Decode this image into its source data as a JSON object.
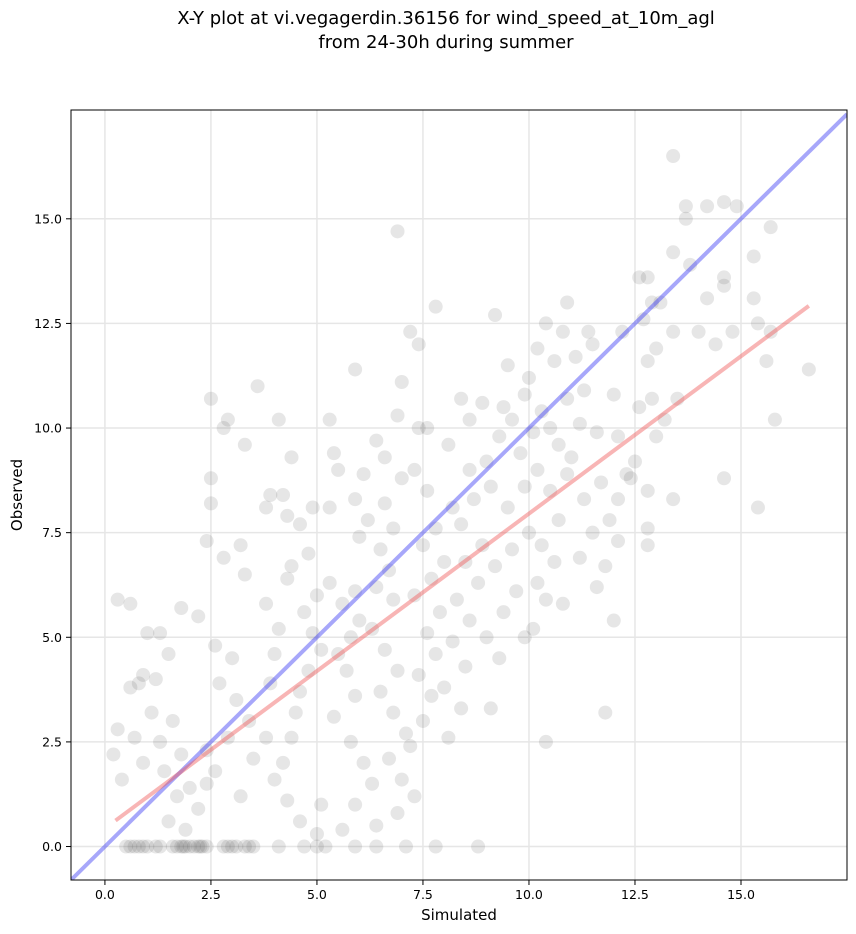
{
  "chart_data": {
    "type": "scatter",
    "title": [
      "X-Y plot at vi.vegagerdin.36156 for wind_speed_at_10m_agl",
      "from 24-30h during summer"
    ],
    "xlabel": "Simulated",
    "ylabel": "Observed",
    "xlim": [
      -0.8,
      17.5
    ],
    "ylim": [
      -0.8,
      17.6
    ],
    "xticks": [
      0.0,
      2.5,
      5.0,
      7.5,
      10.0,
      12.5,
      15.0
    ],
    "xtick_labels": [
      "0.0",
      "2.5",
      "5.0",
      "7.5",
      "10.0",
      "12.5",
      "15.0"
    ],
    "yticks": [
      0.0,
      2.5,
      5.0,
      7.5,
      10.0,
      12.5,
      15.0
    ],
    "ytick_labels": [
      "0.0",
      "2.5",
      "5.0",
      "7.5",
      "10.0",
      "12.5",
      "15.0"
    ],
    "grid": true,
    "point_color": "#555555",
    "point_alpha": 0.15,
    "lines": [
      {
        "role": "identity",
        "color": "#3b3bf5",
        "x": [
          -0.8,
          17.5
        ],
        "y": [
          -0.8,
          17.5
        ]
      },
      {
        "role": "fit",
        "color": "#f05a5a",
        "x": [
          0.25,
          16.6
        ],
        "y": [
          0.62,
          12.92
        ]
      }
    ],
    "points": [
      [
        0.5,
        0
      ],
      [
        0.6,
        0
      ],
      [
        0.7,
        0
      ],
      [
        0.8,
        0
      ],
      [
        0.9,
        0
      ],
      [
        1.0,
        0
      ],
      [
        1.2,
        0
      ],
      [
        1.3,
        0
      ],
      [
        1.6,
        0
      ],
      [
        1.7,
        0
      ],
      [
        1.8,
        0
      ],
      [
        1.85,
        0
      ],
      [
        1.9,
        0
      ],
      [
        2.0,
        0
      ],
      [
        2.1,
        0
      ],
      [
        2.2,
        0
      ],
      [
        2.25,
        0
      ],
      [
        2.3,
        0
      ],
      [
        2.4,
        0
      ],
      [
        2.8,
        0
      ],
      [
        2.9,
        0
      ],
      [
        3.0,
        0
      ],
      [
        3.1,
        0
      ],
      [
        3.3,
        0
      ],
      [
        3.4,
        0
      ],
      [
        3.5,
        0
      ],
      [
        4.1,
        0
      ],
      [
        4.7,
        0
      ],
      [
        5.0,
        0
      ],
      [
        5.2,
        0
      ],
      [
        5.9,
        0
      ],
      [
        6.4,
        0
      ],
      [
        7.1,
        0
      ],
      [
        7.8,
        0
      ],
      [
        8.8,
        0
      ],
      [
        0.3,
        5.9
      ],
      [
        0.6,
        5.8
      ],
      [
        0.2,
        2.2
      ],
      [
        0.3,
        2.8
      ],
      [
        0.4,
        1.6
      ],
      [
        0.6,
        3.8
      ],
      [
        0.8,
        3.9
      ],
      [
        1.0,
        5.1
      ],
      [
        1.3,
        5.1
      ],
      [
        1.5,
        4.6
      ],
      [
        0.9,
        4.1
      ],
      [
        1.2,
        4.0
      ],
      [
        1.1,
        3.2
      ],
      [
        0.7,
        2.6
      ],
      [
        0.9,
        2.0
      ],
      [
        1.3,
        2.5
      ],
      [
        1.6,
        3.0
      ],
      [
        1.8,
        2.2
      ],
      [
        2.0,
        1.4
      ],
      [
        1.4,
        1.8
      ],
      [
        1.7,
        1.2
      ],
      [
        1.5,
        0.6
      ],
      [
        1.9,
        0.4
      ],
      [
        2.2,
        0.9
      ],
      [
        2.4,
        1.5
      ],
      [
        1.8,
        5.7
      ],
      [
        2.2,
        5.5
      ],
      [
        2.4,
        7.3
      ],
      [
        2.5,
        8.2
      ],
      [
        2.5,
        8.8
      ],
      [
        2.5,
        10.7
      ],
      [
        2.8,
        10.0
      ],
      [
        2.9,
        10.2
      ],
      [
        2.8,
        6.9
      ],
      [
        3.2,
        7.2
      ],
      [
        3.3,
        9.6
      ],
      [
        3.6,
        11.0
      ],
      [
        3.3,
        6.5
      ],
      [
        3.8,
        5.8
      ],
      [
        2.6,
        4.8
      ],
      [
        3.0,
        4.5
      ],
      [
        2.7,
        3.9
      ],
      [
        3.1,
        3.5
      ],
      [
        3.4,
        3.0
      ],
      [
        2.9,
        2.6
      ],
      [
        2.4,
        2.3
      ],
      [
        2.6,
        1.8
      ],
      [
        3.2,
        1.2
      ],
      [
        3.5,
        2.1
      ],
      [
        3.8,
        2.6
      ],
      [
        3.9,
        3.9
      ],
      [
        4.0,
        4.6
      ],
      [
        4.1,
        5.2
      ],
      [
        4.3,
        6.4
      ],
      [
        4.4,
        6.7
      ],
      [
        3.8,
        8.1
      ],
      [
        3.9,
        8.4
      ],
      [
        4.2,
        8.4
      ],
      [
        4.1,
        10.2
      ],
      [
        4.4,
        9.3
      ],
      [
        4.3,
        7.9
      ],
      [
        4.6,
        7.7
      ],
      [
        4.8,
        7.0
      ],
      [
        4.9,
        8.1
      ],
      [
        5.3,
        8.1
      ],
      [
        5.3,
        10.2
      ],
      [
        5.4,
        9.4
      ],
      [
        5.5,
        9.0
      ],
      [
        5.3,
        6.3
      ],
      [
        5.0,
        6.0
      ],
      [
        4.7,
        5.6
      ],
      [
        4.9,
        5.1
      ],
      [
        5.1,
        4.7
      ],
      [
        4.8,
        4.2
      ],
      [
        4.6,
        3.7
      ],
      [
        4.5,
        3.2
      ],
      [
        4.4,
        2.6
      ],
      [
        4.2,
        2.0
      ],
      [
        4.0,
        1.6
      ],
      [
        4.3,
        1.1
      ],
      [
        4.6,
        0.6
      ],
      [
        5.0,
        0.3
      ],
      [
        5.6,
        0.4
      ],
      [
        5.1,
        1.0
      ],
      [
        5.6,
        5.8
      ],
      [
        5.9,
        6.1
      ],
      [
        6.0,
        5.4
      ],
      [
        5.8,
        5.0
      ],
      [
        5.5,
        4.6
      ],
      [
        5.7,
        4.2
      ],
      [
        5.9,
        3.6
      ],
      [
        5.4,
        3.1
      ],
      [
        5.8,
        2.5
      ],
      [
        6.1,
        2.0
      ],
      [
        6.3,
        1.5
      ],
      [
        5.9,
        1.0
      ],
      [
        6.4,
        0.5
      ],
      [
        6.0,
        7.4
      ],
      [
        6.2,
        7.8
      ],
      [
        5.9,
        8.3
      ],
      [
        6.1,
        8.9
      ],
      [
        6.4,
        9.7
      ],
      [
        5.9,
        11.4
      ],
      [
        6.6,
        9.3
      ],
      [
        6.6,
        8.2
      ],
      [
        6.8,
        7.6
      ],
      [
        6.5,
        7.1
      ],
      [
        6.7,
        6.6
      ],
      [
        6.4,
        6.2
      ],
      [
        6.8,
        5.9
      ],
      [
        6.3,
        5.2
      ],
      [
        6.6,
        4.7
      ],
      [
        6.9,
        4.2
      ],
      [
        6.5,
        3.7
      ],
      [
        6.8,
        3.2
      ],
      [
        7.1,
        2.7
      ],
      [
        6.7,
        2.1
      ],
      [
        7.0,
        1.6
      ],
      [
        7.3,
        1.2
      ],
      [
        6.9,
        0.8
      ],
      [
        7.2,
        2.4
      ],
      [
        7.5,
        3.0
      ],
      [
        7.7,
        3.6
      ],
      [
        7.4,
        4.1
      ],
      [
        7.8,
        4.6
      ],
      [
        7.6,
        5.1
      ],
      [
        7.9,
        5.6
      ],
      [
        7.3,
        6.0
      ],
      [
        7.7,
        6.4
      ],
      [
        8.0,
        6.8
      ],
      [
        7.5,
        7.2
      ],
      [
        7.8,
        7.6
      ],
      [
        8.2,
        8.1
      ],
      [
        7.6,
        8.5
      ],
      [
        7.0,
        8.8
      ],
      [
        7.3,
        9.0
      ],
      [
        7.4,
        10.0
      ],
      [
        7.6,
        10.0
      ],
      [
        6.9,
        10.3
      ],
      [
        7.0,
        11.1
      ],
      [
        7.2,
        12.3
      ],
      [
        7.4,
        12.0
      ],
      [
        7.8,
        12.9
      ],
      [
        6.9,
        14.7
      ],
      [
        8.1,
        2.6
      ],
      [
        8.4,
        3.3
      ],
      [
        8.0,
        3.8
      ],
      [
        8.5,
        4.3
      ],
      [
        8.2,
        4.9
      ],
      [
        8.6,
        5.4
      ],
      [
        8.3,
        5.9
      ],
      [
        8.8,
        6.3
      ],
      [
        8.5,
        6.8
      ],
      [
        8.9,
        7.2
      ],
      [
        8.4,
        7.7
      ],
      [
        8.7,
        8.3
      ],
      [
        9.1,
        8.6
      ],
      [
        8.6,
        9.0
      ],
      [
        9.0,
        9.2
      ],
      [
        8.9,
        10.6
      ],
      [
        8.4,
        10.7
      ],
      [
        8.1,
        9.6
      ],
      [
        8.6,
        10.2
      ],
      [
        9.3,
        9.8
      ],
      [
        9.4,
        10.5
      ],
      [
        9.5,
        11.5
      ],
      [
        9.2,
        12.7
      ],
      [
        9.6,
        10.2
      ],
      [
        9.9,
        10.8
      ],
      [
        9.1,
        3.3
      ],
      [
        9.3,
        4.5
      ],
      [
        9.0,
        5.0
      ],
      [
        9.4,
        5.6
      ],
      [
        9.7,
        6.1
      ],
      [
        9.2,
        6.7
      ],
      [
        9.6,
        7.1
      ],
      [
        10.0,
        7.5
      ],
      [
        9.5,
        8.1
      ],
      [
        9.9,
        8.6
      ],
      [
        10.2,
        9.0
      ],
      [
        9.8,
        9.4
      ],
      [
        10.1,
        9.9
      ],
      [
        10.3,
        10.4
      ],
      [
        10.0,
        11.2
      ],
      [
        10.2,
        11.9
      ],
      [
        10.4,
        12.5
      ],
      [
        10.6,
        11.6
      ],
      [
        10.8,
        12.3
      ],
      [
        10.5,
        10.0
      ],
      [
        10.9,
        10.7
      ],
      [
        9.9,
        5.0
      ],
      [
        10.1,
        5.2
      ],
      [
        10.4,
        5.9
      ],
      [
        10.2,
        6.3
      ],
      [
        10.6,
        6.8
      ],
      [
        10.3,
        7.2
      ],
      [
        10.7,
        7.8
      ],
      [
        10.5,
        8.5
      ],
      [
        10.9,
        8.9
      ],
      [
        11.0,
        9.3
      ],
      [
        10.7,
        9.6
      ],
      [
        11.2,
        10.1
      ],
      [
        11.3,
        10.9
      ],
      [
        11.1,
        11.7
      ],
      [
        11.4,
        12.3
      ],
      [
        11.5,
        12.0
      ],
      [
        10.9,
        13.0
      ],
      [
        10.8,
        5.8
      ],
      [
        11.2,
        6.9
      ],
      [
        11.5,
        7.5
      ],
      [
        11.3,
        8.3
      ],
      [
        11.7,
        8.7
      ],
      [
        11.6,
        9.9
      ],
      [
        12.0,
        10.8
      ],
      [
        12.2,
        12.3
      ],
      [
        10.4,
        2.5
      ],
      [
        11.8,
        3.2
      ],
      [
        11.6,
        6.2
      ],
      [
        11.9,
        7.8
      ],
      [
        12.1,
        8.3
      ],
      [
        12.3,
        8.9
      ],
      [
        12.5,
        9.2
      ],
      [
        12.1,
        9.8
      ],
      [
        12.6,
        10.5
      ],
      [
        12.8,
        11.6
      ],
      [
        12.7,
        12.6
      ],
      [
        12.9,
        13.0
      ],
      [
        12.6,
        13.6
      ],
      [
        12.8,
        13.6
      ],
      [
        13.1,
        13.0
      ],
      [
        13.4,
        12.3
      ],
      [
        13.0,
        11.9
      ],
      [
        12.9,
        10.7
      ],
      [
        13.2,
        10.2
      ],
      [
        13.0,
        9.8
      ],
      [
        12.8,
        8.5
      ],
      [
        13.4,
        8.3
      ],
      [
        12.1,
        7.3
      ],
      [
        12.8,
        7.2
      ],
      [
        12.8,
        7.6
      ],
      [
        12.0,
        5.4
      ],
      [
        11.8,
        6.7
      ],
      [
        12.4,
        8.8
      ],
      [
        13.4,
        14.2
      ],
      [
        13.4,
        16.5
      ],
      [
        13.7,
        15.3
      ],
      [
        13.7,
        15.0
      ],
      [
        13.8,
        13.9
      ],
      [
        14.2,
        15.3
      ],
      [
        14.6,
        15.4
      ],
      [
        14.9,
        15.3
      ],
      [
        14.6,
        13.6
      ],
      [
        14.6,
        13.4
      ],
      [
        14.2,
        13.1
      ],
      [
        14.0,
        12.3
      ],
      [
        13.5,
        10.7
      ],
      [
        14.4,
        12.0
      ],
      [
        14.8,
        12.3
      ],
      [
        15.3,
        14.1
      ],
      [
        15.7,
        14.8
      ],
      [
        15.3,
        13.1
      ],
      [
        15.4,
        12.5
      ],
      [
        15.7,
        12.3
      ],
      [
        15.6,
        11.6
      ],
      [
        15.8,
        10.2
      ],
      [
        14.6,
        8.8
      ],
      [
        15.4,
        8.1
      ],
      [
        16.6,
        11.4
      ]
    ]
  }
}
